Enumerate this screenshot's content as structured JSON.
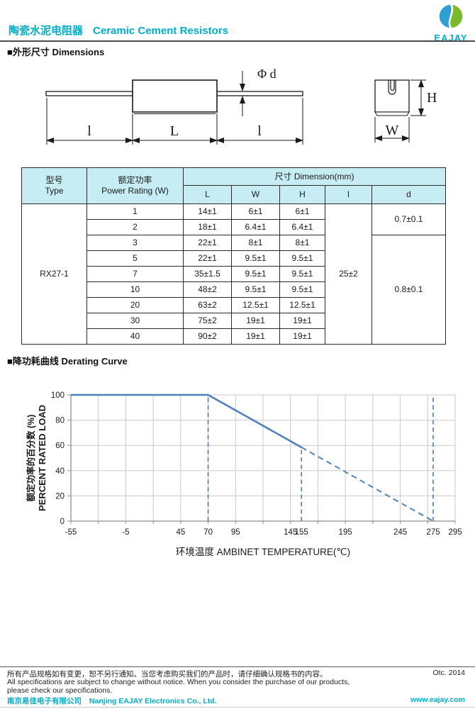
{
  "header": {
    "title_zh": "陶瓷水泥电阻器",
    "title_en": "Ceramic Cement Resistors",
    "logo_text": "EAJAY",
    "brand_color": "#00ADC6",
    "logo_blue": "#2E9FD4",
    "logo_green": "#7AB929"
  },
  "sections": {
    "dimensions_zh": "■外形尺寸",
    "dimensions_en": "Dimensions",
    "derating_zh": "■降功耗曲线",
    "derating_en": "Derating Curve"
  },
  "figure": {
    "labels": {
      "lead_left": "l",
      "body_length": "L",
      "lead_right": "l",
      "lead_diameter": "Φ d",
      "height": "H",
      "width": "W"
    }
  },
  "table": {
    "headers": {
      "type_zh": "型号",
      "type_en": "Type",
      "power_zh": "额定功率",
      "power_en": "Power Rating (W)",
      "dimension": "尺寸 Dimension(mm)",
      "sub_cols": [
        "L",
        "W",
        "H",
        "l",
        "d"
      ]
    },
    "type_value": "RX27-1",
    "lead_length_value": "25±2",
    "d_groups": [
      {
        "value": "0.7±0.1",
        "rows": 2
      },
      {
        "value": "0.8±0.1",
        "rows": 7
      }
    ],
    "rows": [
      {
        "power": "1",
        "L": "14±1",
        "W": "6±1",
        "H": "6±1"
      },
      {
        "power": "2",
        "L": "18±1",
        "W": "6.4±1",
        "H": "6.4±1"
      },
      {
        "power": "3",
        "L": "22±1",
        "W": "8±1",
        "H": "8±1"
      },
      {
        "power": "5",
        "L": "22±1",
        "W": "9.5±1",
        "H": "9.5±1"
      },
      {
        "power": "7",
        "L": "35±1.5",
        "W": "9.5±1",
        "H": "9.5±1"
      },
      {
        "power": "10",
        "L": "48±2",
        "W": "9.5±1",
        "H": "9.5±1"
      },
      {
        "power": "20",
        "L": "63±2",
        "W": "12.5±1",
        "H": "12.5±1"
      },
      {
        "power": "30",
        "L": "75±2",
        "W": "19±1",
        "H": "19±1"
      },
      {
        "power": "40",
        "L": "90±2",
        "W": "19±1",
        "H": "19±1"
      }
    ]
  },
  "chart_data": {
    "type": "line",
    "xlabel": "环境温度  AMBINET TEMPERATURE(℃)",
    "ylabel_zh": "额定功率的百分数 (%)",
    "ylabel_en": "PERCENT RATED LOAD",
    "xlim": [
      -55,
      295
    ],
    "ylim": [
      0,
      100
    ],
    "x_gridline_step": 25,
    "y_gridline_step": 20,
    "x_tick_labels": [
      "-55",
      "-5",
      "45",
      "70",
      "95",
      "145",
      "155",
      "195",
      "245",
      "275",
      "295"
    ],
    "x_tick_values": [
      -55,
      -5,
      45,
      70,
      95,
      145,
      155,
      195,
      245,
      275,
      295
    ],
    "y_tick_labels": [
      "0",
      "20",
      "40",
      "60",
      "80",
      "100"
    ],
    "y_tick_values": [
      0,
      20,
      40,
      60,
      80,
      100
    ],
    "grid": true,
    "series": [
      {
        "name": "rated-load-solid",
        "style": "solid",
        "points": [
          [
            -55,
            100
          ],
          [
            70,
            100
          ],
          [
            155,
            58.5
          ]
        ]
      },
      {
        "name": "rated-load-extrapolated",
        "style": "dashed",
        "points": [
          [
            155,
            58.5
          ],
          [
            275,
            0
          ]
        ]
      }
    ],
    "reference_lines": [
      {
        "x": 70,
        "y0": 0,
        "y1": 100
      },
      {
        "x": 155,
        "y0": 0,
        "y1": 58.5
      },
      {
        "x": 275,
        "y0": 0,
        "y1": 100
      }
    ],
    "line_color": "#4F81BD",
    "grid_color": "#C9C9C9",
    "axis_color": "#8E8E8E"
  },
  "footer": {
    "notice_zh": "所有产品规格如有变更，恕不另行通知。当您考虑购买我们的产品时，请仔细确认规格书的内容。",
    "date": "Otc. 2014",
    "notice_en_1": "All specifications are subject to change without notice. When you consider the purchase of our products,",
    "notice_en_2": "please check our specifications.",
    "company_zh": "南京易佳电子有限公司",
    "company_en": "Nanjing EAJAY Electronics Co., Ltd.",
    "website": "www.eajay.com"
  }
}
